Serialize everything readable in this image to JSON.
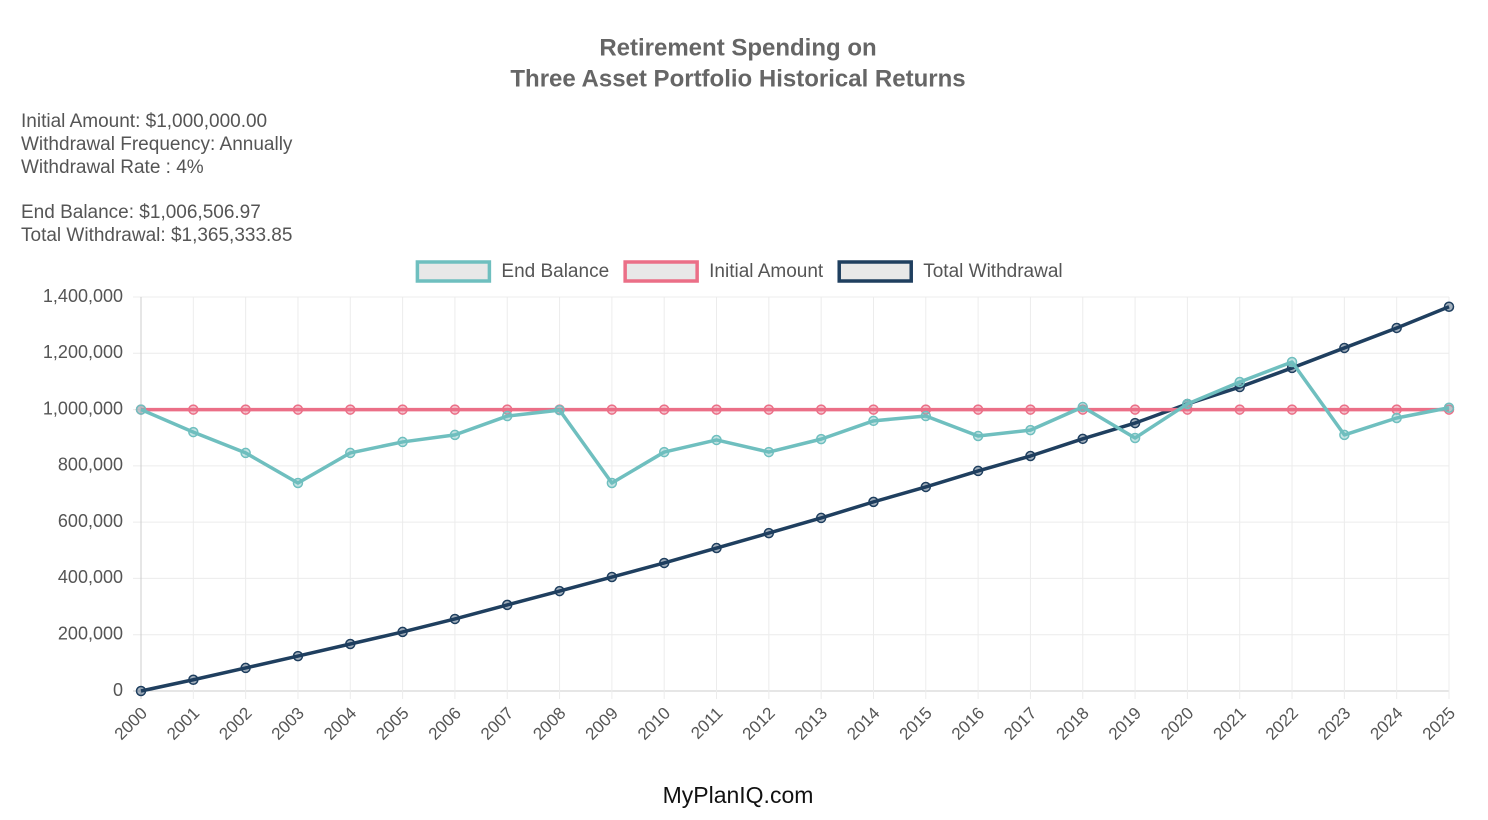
{
  "chart_data": {
    "type": "line",
    "title": [
      "Retirement Spending on",
      "Three Asset Portfolio Historical Returns"
    ],
    "info": [
      "Initial Amount: $1,000,000.00",
      "Withdrawal Frequency: Annually",
      "Withdrawal Rate : 4%"
    ],
    "summary": [
      "End Balance: $1,006,506.97",
      "Total Withdrawal: $1,365,333.85"
    ],
    "footer": "MyPlanIQ.com",
    "categories": [
      "2000",
      "2001",
      "2002",
      "2003",
      "2004",
      "2005",
      "2006",
      "2007",
      "2008",
      "2009",
      "2010",
      "2011",
      "2012",
      "2013",
      "2014",
      "2015",
      "2016",
      "2017",
      "2018",
      "2019",
      "2020",
      "2021",
      "2022",
      "2023",
      "2024",
      "2025"
    ],
    "series": [
      {
        "name": "End Balance",
        "color": "#6fbfbf",
        "values": [
          1000000,
          920000,
          846000,
          739000,
          846000,
          885000,
          910000,
          977000,
          998000,
          739000,
          849000,
          892000,
          849000,
          895000,
          960000,
          977000,
          906000,
          927000,
          1009000,
          899000,
          1020000,
          1098000,
          1169000,
          910000,
          970000,
          1006506.97
        ]
      },
      {
        "name": "Initial Amount",
        "color": "#eb6f87",
        "values": [
          1000000,
          1000000,
          1000000,
          1000000,
          1000000,
          1000000,
          1000000,
          1000000,
          1000000,
          1000000,
          1000000,
          1000000,
          1000000,
          1000000,
          1000000,
          1000000,
          1000000,
          1000000,
          1000000,
          1000000,
          1000000,
          1000000,
          1000000,
          1000000,
          1000000,
          1000000
        ]
      },
      {
        "name": "Total Withdrawal",
        "color": "#1f3f5f",
        "values": [
          0,
          40000,
          82000,
          124000,
          167000,
          210000,
          256000,
          306000,
          355000,
          405000,
          455000,
          508000,
          561000,
          615000,
          672000,
          725000,
          782000,
          835000,
          896000,
          952000,
          1020000,
          1080000,
          1148000,
          1219000,
          1290000,
          1365333.85
        ]
      }
    ],
    "ylim": [
      0,
      1400000
    ],
    "yticks": [
      0,
      {
        "value": 200000,
        "label": "200,000"
      },
      {
        "value": 400000,
        "label": "400,000"
      },
      {
        "value": 600000,
        "label": "600,000"
      },
      {
        "value": 800000,
        "label": "800,000"
      },
      {
        "value": 1000000,
        "label": "1,000,000"
      },
      {
        "value": 1200000,
        "label": "1,200,000"
      },
      {
        "value": 1400000,
        "label": "1,400,000"
      }
    ],
    "grid": true,
    "legend": "top"
  }
}
